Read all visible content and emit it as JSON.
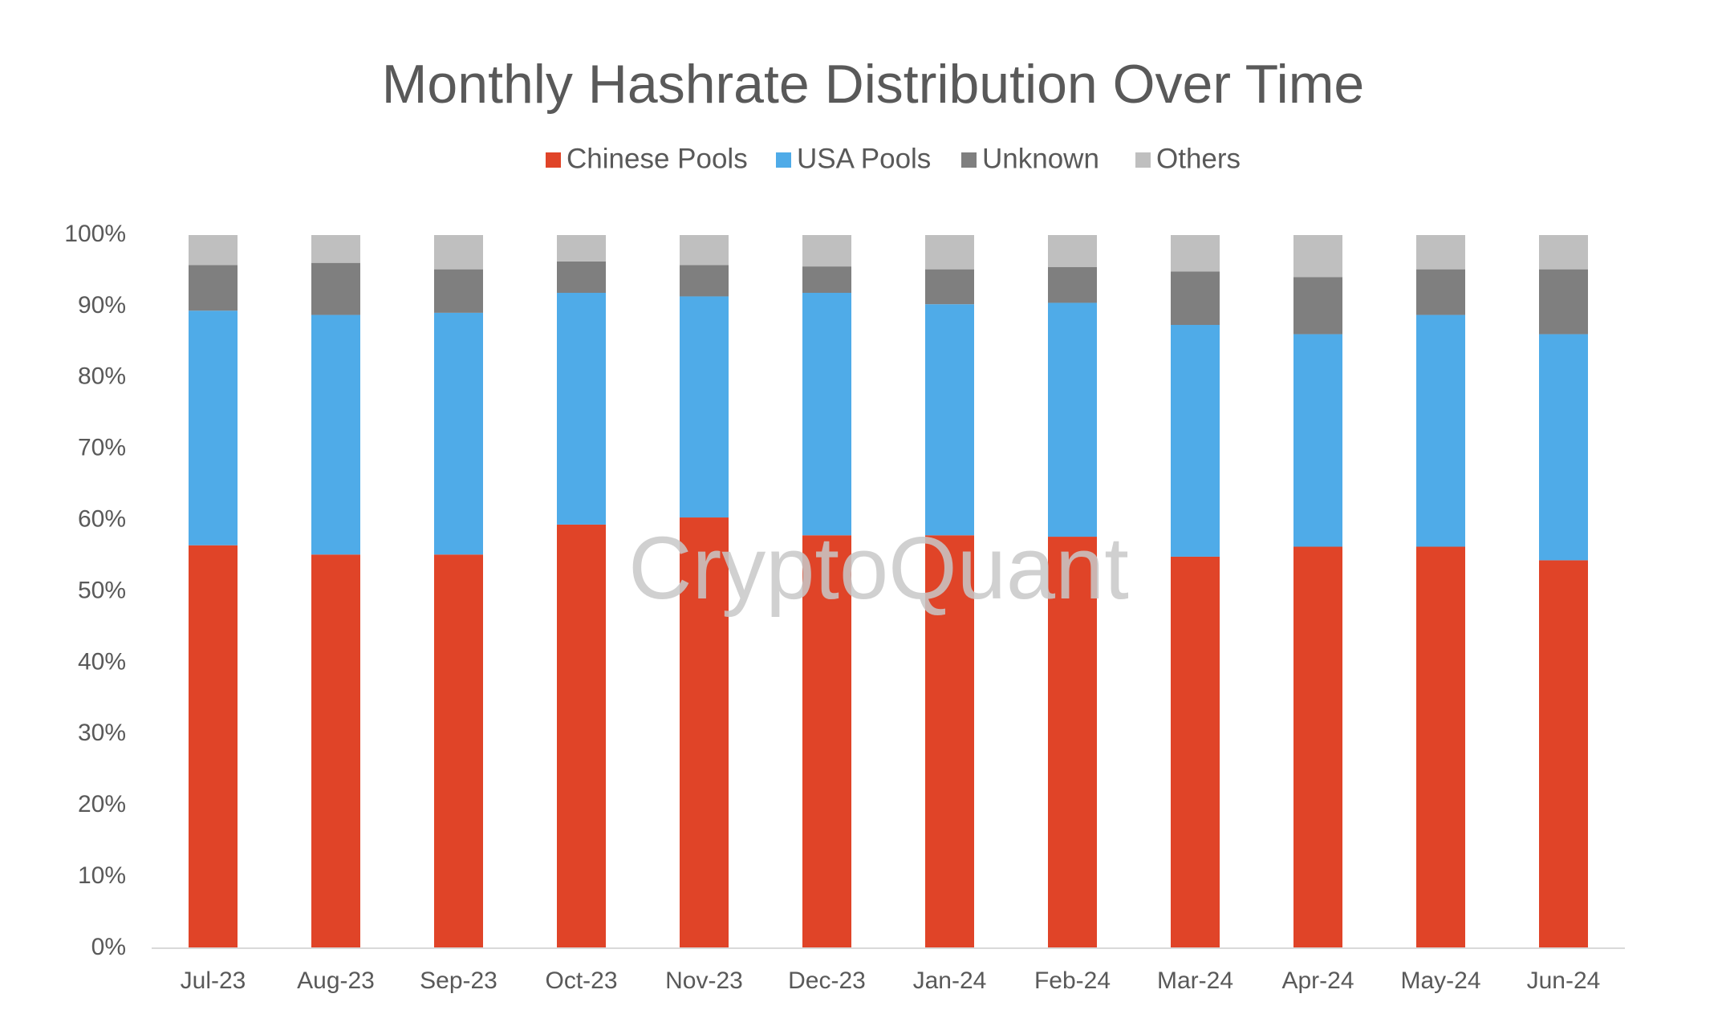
{
  "chart_data": {
    "type": "stacked-bar",
    "title": "Monthly Hashrate Distribution Over Time",
    "watermark": "CryptoQuant",
    "categories": [
      "Jul-23",
      "Aug-23",
      "Sep-23",
      "Oct-23",
      "Nov-23",
      "Dec-23",
      "Jan-24",
      "Feb-24",
      "Mar-24",
      "Apr-24",
      "May-24",
      "Jun-24"
    ],
    "series": [
      {
        "name": "Chinese Pools",
        "color": "#e04428",
        "values": [
          56.5,
          55.2,
          55.2,
          59.4,
          60.4,
          57.9,
          57.9,
          57.7,
          54.9,
          56.3,
          56.3,
          54.4
        ]
      },
      {
        "name": "USA Pools",
        "color": "#4fabe8",
        "values": [
          32.9,
          33.6,
          33.9,
          32.5,
          31.0,
          34.0,
          32.4,
          32.8,
          32.5,
          29.8,
          32.5,
          31.7
        ]
      },
      {
        "name": "Unknown",
        "color": "#7f7f7f",
        "values": [
          6.4,
          7.3,
          6.1,
          4.4,
          4.4,
          3.7,
          4.9,
          5.0,
          7.5,
          8.0,
          6.4,
          9.1
        ]
      },
      {
        "name": "Others",
        "color": "#bfbfbf",
        "values": [
          4.2,
          3.9,
          4.8,
          3.7,
          4.2,
          4.4,
          4.8,
          4.5,
          5.1,
          5.9,
          4.8,
          4.8
        ]
      }
    ],
    "ylim": [
      0,
      100
    ],
    "yticks": [
      {
        "value": 0,
        "label": "0%"
      },
      {
        "value": 10,
        "label": "10%"
      },
      {
        "value": 20,
        "label": "20%"
      },
      {
        "value": 30,
        "label": "30%"
      },
      {
        "value": 40,
        "label": "40%"
      },
      {
        "value": 50,
        "label": "50%"
      },
      {
        "value": 60,
        "label": "60%"
      },
      {
        "value": 70,
        "label": "70%"
      },
      {
        "value": 80,
        "label": "80%"
      },
      {
        "value": 90,
        "label": "90%"
      },
      {
        "value": 100,
        "label": "100%"
      }
    ],
    "legend": "top",
    "grid": false
  }
}
